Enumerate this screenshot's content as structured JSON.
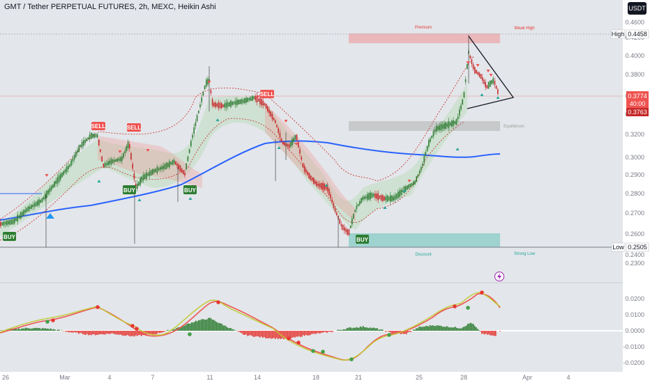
{
  "header": {
    "title": "GMT / Tether PERPETUAL FUTURES, 2h, MEXC, Heikin Ashi",
    "currency": "USDT"
  },
  "price_axis": {
    "ticks": [
      "0.4600",
      "0.4400",
      "0.4200",
      "0.4000",
      "0.3800",
      "0.3600",
      "0.3400",
      "0.3200",
      "0.3000",
      "0.2900",
      "0.2800",
      "0.2700",
      "0.2600",
      "0.2500",
      "0.2400",
      "0.2300"
    ],
    "high_label": "High",
    "high_value": "0.4458",
    "low_label": "Low",
    "low_value": "0.2505",
    "current_price": "0.3774",
    "countdown": "40:00",
    "prev_close": "0.3763"
  },
  "time_axis": {
    "labels": [
      "26",
      "Mar",
      "4",
      "7",
      "11",
      "14",
      "18",
      "21",
      "25",
      "28",
      "Apr",
      "4"
    ]
  },
  "oscillator_axis": {
    "ticks": [
      "0.0200",
      "0.0100",
      "0.0000",
      "-0.0100",
      "-0.0200"
    ]
  },
  "zones": {
    "premium_label": "Premium",
    "strong_high": "Weak High",
    "discount_label": "Discount",
    "strong_low": "Strong Low",
    "equilibrium": "Equilibrium"
  },
  "signals": {
    "sell": "SELL",
    "buy": "BUY"
  },
  "colors": {
    "bull": "#26a69a",
    "bear": "#ef5350",
    "ma": "#2962ff",
    "candle_up": "#2e7d32",
    "candle_down": "#c62828"
  }
}
